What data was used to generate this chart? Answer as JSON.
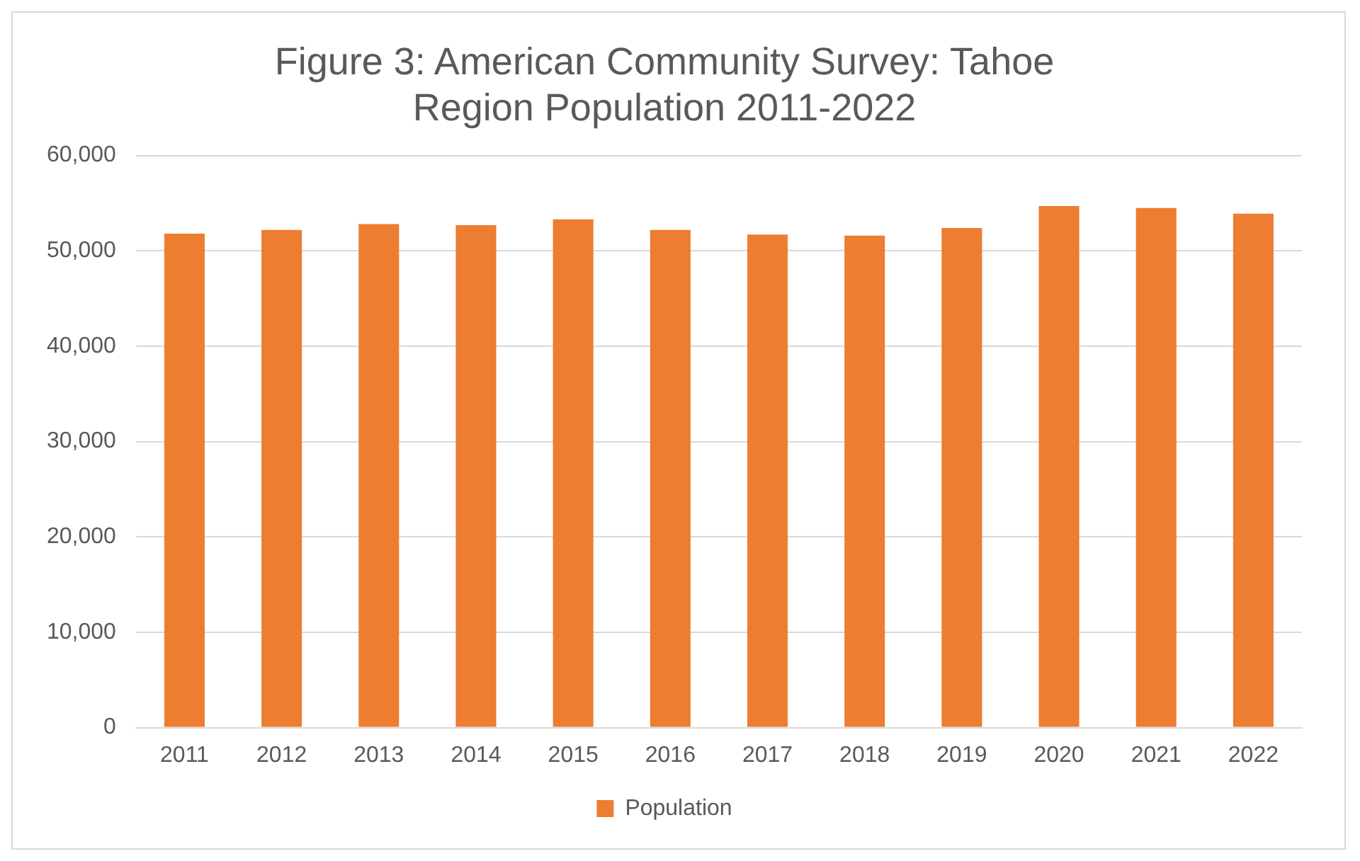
{
  "chart_data": {
    "type": "bar",
    "title": "Figure 3: American Community Survey: Tahoe Region Population 2011-2022",
    "categories": [
      "2011",
      "2012",
      "2013",
      "2014",
      "2015",
      "2016",
      "2017",
      "2018",
      "2019",
      "2020",
      "2021",
      "2022"
    ],
    "series": [
      {
        "name": "Population",
        "color": "#ed7d31",
        "values": [
          51800,
          52200,
          52800,
          52700,
          53300,
          52200,
          51700,
          51600,
          52400,
          54700,
          54500,
          53900
        ]
      }
    ],
    "ylim": [
      0,
      60000
    ],
    "yticks": [
      0,
      {
        "value": 10000,
        "label": "10,000"
      },
      {
        "value": 20000,
        "label": "20,000"
      },
      {
        "value": 30000,
        "label": "30,000"
      },
      {
        "value": 40000,
        "label": "40,000"
      },
      {
        "value": 50000,
        "label": "50,000"
      },
      {
        "value": 60000,
        "label": "60,000"
      }
    ],
    "grid": "y",
    "legend": "bottom"
  }
}
